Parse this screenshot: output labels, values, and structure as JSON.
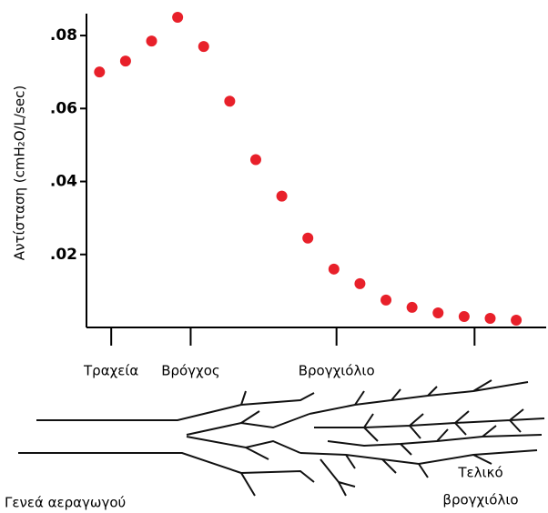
{
  "chart_data": {
    "type": "scatter",
    "y_label": "Αντίσταση (cmH₂O/L/sec)",
    "x": [
      0,
      1,
      2,
      3,
      4,
      5,
      6,
      7,
      8,
      9,
      10,
      11,
      12,
      13,
      14,
      15,
      16
    ],
    "values": [
      0.07,
      0.073,
      0.0785,
      0.085,
      0.077,
      0.062,
      0.046,
      0.036,
      0.0245,
      0.016,
      0.012,
      0.0075,
      0.0055,
      0.004,
      0.003,
      0.0025,
      0.002
    ],
    "color": "#e8202a",
    "xlim": [
      -0.5,
      17.15
    ],
    "ylim": [
      0,
      0.086
    ],
    "yticks": [
      {
        "value": 0.02,
        "label": ".02"
      },
      {
        "value": 0.04,
        "label": ".04"
      },
      {
        "value": 0.06,
        "label": ".06"
      },
      {
        "value": 0.08,
        "label": ".08"
      }
    ],
    "xticks": [
      {
        "value": 0.45,
        "label": "Τραχεία"
      },
      {
        "value": 3.5,
        "label": "Βρόγχος"
      },
      {
        "value": 9.1,
        "label": "Βρογχιόλιο"
      },
      {
        "value": 14.4,
        "label": null
      }
    ],
    "annotations": [
      "Γενεά αεραγωγού",
      "Τελικό",
      "βρογχιόλιο"
    ]
  }
}
